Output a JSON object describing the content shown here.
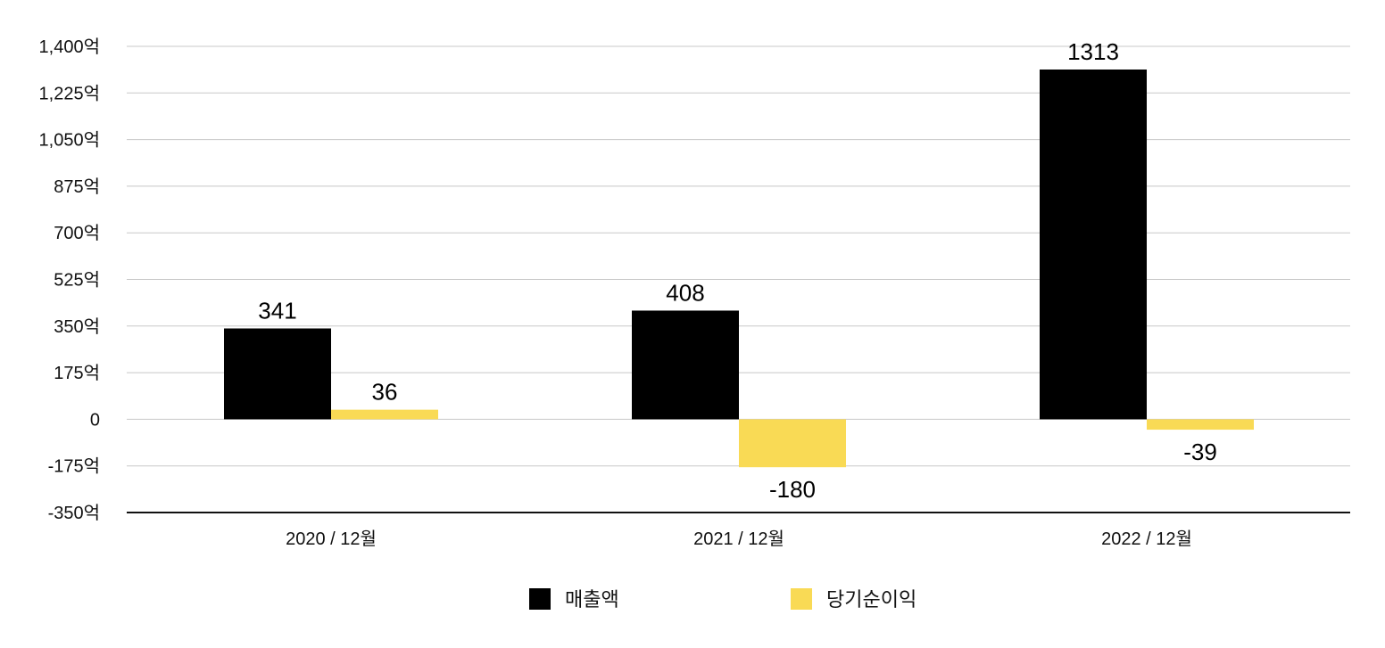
{
  "chart_data": {
    "type": "bar",
    "categories": [
      "2020 / 12월",
      "2021 / 12월",
      "2022 / 12월"
    ],
    "series": [
      {
        "name": "매출액",
        "values": [
          341,
          408,
          1313
        ],
        "color": "#000000"
      },
      {
        "name": "당기순이익",
        "values": [
          36,
          -180,
          -39
        ],
        "color": "#F9DA55"
      }
    ],
    "ylim": [
      -350,
      1400
    ],
    "yticks": [
      1400,
      1225,
      1050,
      875,
      700,
      525,
      350,
      175,
      0,
      -175,
      -350
    ],
    "ytick_labels": [
      "1,400억",
      "1,225억",
      "1,050억",
      "875억",
      "700억",
      "525억",
      "350억",
      "175억",
      "0",
      "-175억",
      "-350억"
    ],
    "data_labels": [
      [
        "341",
        "408",
        "1313"
      ],
      [
        "36",
        "-180",
        "-39"
      ]
    ],
    "title": "",
    "xlabel": "",
    "ylabel": "",
    "grid": true,
    "grid_color": "#C8C8C8",
    "legend": "bottom-center"
  }
}
